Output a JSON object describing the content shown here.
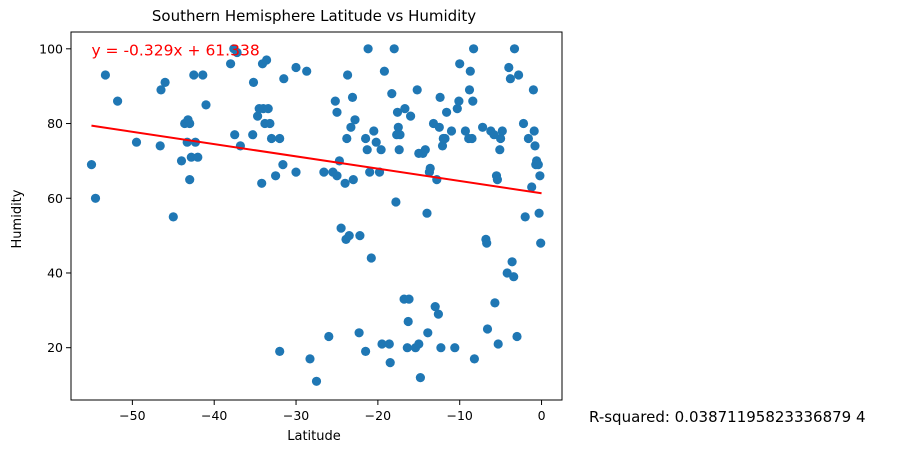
{
  "chart_data": {
    "type": "scatter",
    "title": "Southern Hemisphere Latitude vs Humidity",
    "xlabel": "Latitude",
    "ylabel": "Humidity",
    "xlim": [
      -57.5,
      2.5
    ],
    "ylim": [
      6,
      104.5
    ],
    "xticks": [
      -50,
      -40,
      -30,
      -20,
      -10,
      0
    ],
    "yticks": [
      20,
      40,
      60,
      80,
      100
    ],
    "grid": false,
    "colors": {
      "points": "#1f77b4",
      "regression": "#ff0000"
    },
    "regression": {
      "slope": -0.329,
      "intercept": 61.338,
      "x_range": [
        -55,
        0
      ],
      "equation_label": "y = -0.329x + 61.338",
      "equation_at": [
        -55,
        99.5
      ]
    },
    "r_squared_label": "R-squared: 0.03871195823336879 4",
    "points": [
      [
        -55,
        69
      ],
      [
        -54.5,
        60
      ],
      [
        -53.3,
        93
      ],
      [
        -51.8,
        86
      ],
      [
        -49.5,
        75
      ],
      [
        -46.6,
        74
      ],
      [
        -46.5,
        89
      ],
      [
        -46,
        91
      ],
      [
        -45,
        55
      ],
      [
        -44,
        70
      ],
      [
        -43.6,
        80
      ],
      [
        -43.3,
        75
      ],
      [
        -43.2,
        81
      ],
      [
        -43,
        80
      ],
      [
        -43,
        65
      ],
      [
        -42.8,
        71
      ],
      [
        -42.5,
        93
      ],
      [
        -42.3,
        75
      ],
      [
        -42,
        71
      ],
      [
        -41.4,
        93
      ],
      [
        -41,
        85
      ],
      [
        -38,
        96
      ],
      [
        -37.6,
        100
      ],
      [
        -37.5,
        77
      ],
      [
        -37.2,
        99
      ],
      [
        -36.8,
        74
      ],
      [
        -35.3,
        77
      ],
      [
        -35.2,
        91
      ],
      [
        -34.7,
        82
      ],
      [
        -34.5,
        84
      ],
      [
        -34.2,
        64
      ],
      [
        -34.1,
        96
      ],
      [
        -34,
        84
      ],
      [
        -33.8,
        80
      ],
      [
        -33.6,
        97
      ],
      [
        -33.4,
        84
      ],
      [
        -33.2,
        80
      ],
      [
        -33,
        76
      ],
      [
        -32.5,
        66
      ],
      [
        -32,
        76
      ],
      [
        -32,
        19
      ],
      [
        -31.6,
        69
      ],
      [
        -31.5,
        92
      ],
      [
        -30,
        95
      ],
      [
        -30,
        67
      ],
      [
        -28.7,
        94
      ],
      [
        -28.3,
        17
      ],
      [
        -27.5,
        11
      ],
      [
        -26.6,
        67
      ],
      [
        -26,
        23
      ],
      [
        -25.5,
        67
      ],
      [
        -25.2,
        86
      ],
      [
        -25,
        83
      ],
      [
        -25,
        66
      ],
      [
        -24.7,
        70
      ],
      [
        -24.5,
        52
      ],
      [
        -24,
        64
      ],
      [
        -23.9,
        49
      ],
      [
        -23.8,
        76
      ],
      [
        -23.7,
        93
      ],
      [
        -23.5,
        50
      ],
      [
        -23.3,
        79
      ],
      [
        -23.1,
        87
      ],
      [
        -23,
        65
      ],
      [
        -22.8,
        81
      ],
      [
        -22.3,
        24
      ],
      [
        -22.2,
        50
      ],
      [
        -21.5,
        19
      ],
      [
        -21.5,
        76
      ],
      [
        -21.3,
        73
      ],
      [
        -21.2,
        100
      ],
      [
        -21,
        67
      ],
      [
        -20.8,
        44
      ],
      [
        -20.5,
        78
      ],
      [
        -20.2,
        75
      ],
      [
        -19.8,
        67
      ],
      [
        -19.6,
        73
      ],
      [
        -19.5,
        21
      ],
      [
        -19.2,
        94
      ],
      [
        -18.6,
        21
      ],
      [
        -18.5,
        16
      ],
      [
        -18.3,
        88
      ],
      [
        -18,
        100
      ],
      [
        -17.8,
        59
      ],
      [
        -17.7,
        77
      ],
      [
        -17.6,
        83
      ],
      [
        -17.5,
        79
      ],
      [
        -17.4,
        73
      ],
      [
        -17.3,
        77
      ],
      [
        -16.8,
        33
      ],
      [
        -16.7,
        84
      ],
      [
        -16.4,
        20
      ],
      [
        -16.3,
        27
      ],
      [
        -16.2,
        33
      ],
      [
        -16,
        82
      ],
      [
        -15.4,
        20
      ],
      [
        -15.2,
        89
      ],
      [
        -15,
        72
      ],
      [
        -15,
        21
      ],
      [
        -14.8,
        12
      ],
      [
        -14.5,
        72
      ],
      [
        -14.2,
        73
      ],
      [
        -14,
        56
      ],
      [
        -13.9,
        24
      ],
      [
        -13.7,
        67
      ],
      [
        -13.6,
        68
      ],
      [
        -13.2,
        80
      ],
      [
        -13,
        31
      ],
      [
        -12.8,
        65
      ],
      [
        -12.6,
        29
      ],
      [
        -12.5,
        79
      ],
      [
        -12.4,
        87
      ],
      [
        -12.3,
        20
      ],
      [
        -12.1,
        74
      ],
      [
        -12,
        76
      ],
      [
        -11.8,
        76
      ],
      [
        -11.6,
        83
      ],
      [
        -11,
        78
      ],
      [
        -10.6,
        20
      ],
      [
        -10.3,
        84
      ],
      [
        -10.1,
        86
      ],
      [
        -10,
        96
      ],
      [
        -9.3,
        78
      ],
      [
        -8.9,
        76
      ],
      [
        -8.8,
        89
      ],
      [
        -8.7,
        94
      ],
      [
        -8.5,
        76
      ],
      [
        -8.4,
        86
      ],
      [
        -8.3,
        100
      ],
      [
        -8.2,
        17
      ],
      [
        -7.2,
        79
      ],
      [
        -6.8,
        49
      ],
      [
        -6.7,
        48
      ],
      [
        -6.6,
        25
      ],
      [
        -6.2,
        78
      ],
      [
        -5.8,
        77
      ],
      [
        -5.7,
        32
      ],
      [
        -5.5,
        66
      ],
      [
        -5.4,
        65
      ],
      [
        -5.3,
        21
      ],
      [
        -5.1,
        73
      ],
      [
        -5,
        76
      ],
      [
        -4.8,
        78
      ],
      [
        -4.2,
        40
      ],
      [
        -4,
        95
      ],
      [
        -3.8,
        92
      ],
      [
        -3.6,
        43
      ],
      [
        -3.4,
        39
      ],
      [
        -3.3,
        100
      ],
      [
        -3,
        23
      ],
      [
        -2.8,
        93
      ],
      [
        -2.2,
        80
      ],
      [
        -2,
        55
      ],
      [
        -1.6,
        76
      ],
      [
        -1.2,
        63
      ],
      [
        -1,
        89
      ],
      [
        -0.9,
        78
      ],
      [
        -0.8,
        74
      ],
      [
        -0.7,
        69
      ],
      [
        -0.6,
        70
      ],
      [
        -0.4,
        69
      ],
      [
        -0.3,
        56
      ],
      [
        -0.2,
        66
      ],
      [
        -0.1,
        48
      ]
    ]
  }
}
